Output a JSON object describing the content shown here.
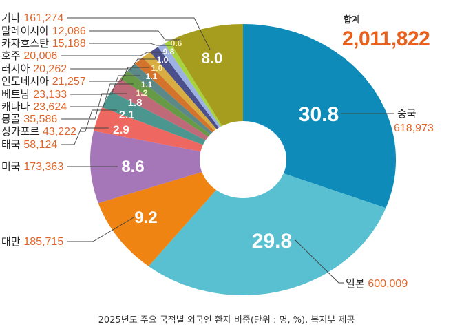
{
  "chart_data": {
    "type": "pie",
    "variant": "donut",
    "unit_note": "단위 : 명, %",
    "total_label": "합계",
    "total_value": "2,011,822",
    "slices": [
      {
        "name": "중국",
        "count": "618,973",
        "percent": 30.8,
        "label": "30.8",
        "color": "#0e8bb9"
      },
      {
        "name": "일본",
        "count": "600,009",
        "percent": 29.8,
        "label": "29.8",
        "color": "#58c0d0"
      },
      {
        "name": "대만",
        "count": "185,715",
        "percent": 9.2,
        "label": "9.2",
        "color": "#f08412"
      },
      {
        "name": "미국",
        "count": "173,363",
        "percent": 8.6,
        "label": "8.6",
        "color": "#a577b8"
      },
      {
        "name": "태국",
        "count": "58,124",
        "percent": 2.9,
        "label": "2.9",
        "color": "#ee6761"
      },
      {
        "name": "싱가포르",
        "count": "43,222",
        "percent": 2.1,
        "label": "2.1",
        "color": "#4b978f"
      },
      {
        "name": "몽골",
        "count": "35,586",
        "percent": 1.8,
        "label": "1.8",
        "color": "#bf6a79"
      },
      {
        "name": "캐나다",
        "count": "23,624",
        "percent": 1.2,
        "label": "1.2",
        "color": "#669a47"
      },
      {
        "name": "베트남",
        "count": "23,133",
        "percent": 1.1,
        "label": "1.1",
        "color": "#5c8888"
      },
      {
        "name": "인도네시아",
        "count": "21,257",
        "percent": 1.1,
        "label": "1.1",
        "color": "#d4742c"
      },
      {
        "name": "러시아",
        "count": "20,262",
        "percent": 1.0,
        "label": "1.0",
        "color": "#d8ad42"
      },
      {
        "name": "호주",
        "count": "20,006",
        "percent": 1.0,
        "label": "1.0",
        "color": "#4b4f8b"
      },
      {
        "name": "카자흐스탄",
        "count": "15,188",
        "percent": 0.8,
        "label": "0.8",
        "color": "#9db2e2"
      },
      {
        "name": "말레이시아",
        "count": "12,086",
        "percent": 0.6,
        "label": "0.6",
        "color": "#a6d33e"
      },
      {
        "name": "기타",
        "count": "161,274",
        "percent": 8.0,
        "label": "8.0",
        "color": "#a69d1f"
      }
    ]
  },
  "caption": "2025년도 주요 국적별 외국인 환자 비중(단위 : 명, %). 복지부 제공",
  "colors": {
    "name_text": "#222222",
    "count_text": "#e0652a",
    "leader_line": "#444444"
  }
}
